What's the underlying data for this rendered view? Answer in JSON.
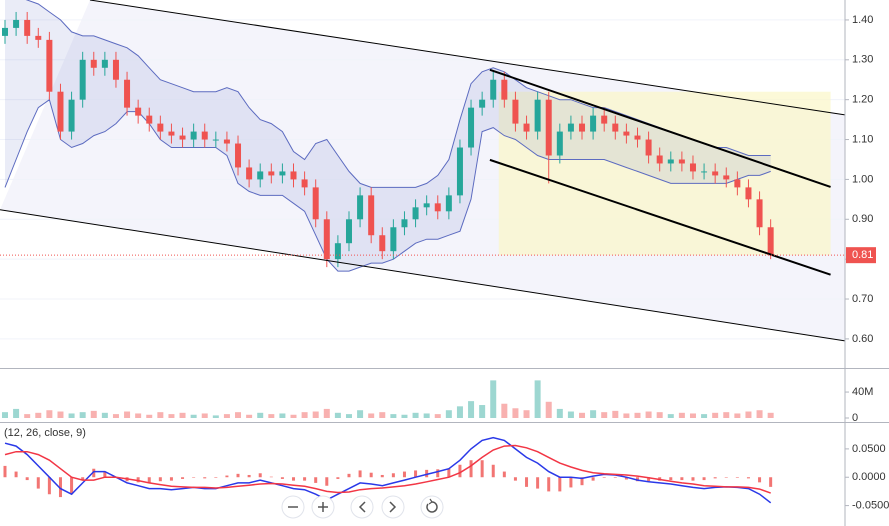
{
  "chart_data": [
    {
      "type": "candlestick",
      "open": [
        1.36,
        1.38,
        1.4,
        1.36,
        1.35,
        1.22,
        1.12,
        1.2,
        1.3,
        1.28,
        1.3,
        1.25,
        1.18,
        1.16,
        1.14,
        1.12,
        1.11,
        1.1,
        1.12,
        1.1,
        1.1,
        1.09,
        1.03,
        1.0,
        1.02,
        1.01,
        1.02,
        1.0,
        0.98,
        0.9,
        0.8,
        0.84,
        0.9,
        0.96,
        0.86,
        0.82,
        0.88,
        0.9,
        0.93,
        0.94,
        0.92,
        0.96,
        1.08,
        1.18,
        1.2,
        1.25,
        1.2,
        1.14,
        1.12,
        1.2,
        1.06,
        1.12,
        1.14,
        1.12,
        1.16,
        1.14,
        1.12,
        1.11,
        1.1,
        1.06,
        1.04,
        1.05,
        1.04,
        1.02,
        1.02,
        1.01,
        1.0,
        0.98,
        0.95,
        0.88
      ],
      "high": [
        1.4,
        1.42,
        1.42,
        1.38,
        1.37,
        1.24,
        1.22,
        1.32,
        1.32,
        1.32,
        1.32,
        1.27,
        1.2,
        1.18,
        1.16,
        1.14,
        1.13,
        1.14,
        1.14,
        1.12,
        1.12,
        1.11,
        1.05,
        1.04,
        1.04,
        1.04,
        1.04,
        1.02,
        1.0,
        0.92,
        0.86,
        0.92,
        0.98,
        0.98,
        0.88,
        0.9,
        0.92,
        0.95,
        0.96,
        0.96,
        0.98,
        1.1,
        1.2,
        1.22,
        1.27,
        1.27,
        1.22,
        1.16,
        1.22,
        1.22,
        1.14,
        1.16,
        1.16,
        1.18,
        1.18,
        1.16,
        1.14,
        1.13,
        1.12,
        1.08,
        1.07,
        1.07,
        1.06,
        1.04,
        1.04,
        1.03,
        1.02,
        1.0,
        0.97,
        0.9
      ],
      "low": [
        1.34,
        1.36,
        1.34,
        1.33,
        1.2,
        1.1,
        1.1,
        1.18,
        1.26,
        1.26,
        1.23,
        1.16,
        1.14,
        1.12,
        1.1,
        1.09,
        1.08,
        1.08,
        1.08,
        1.08,
        1.07,
        1.01,
        0.98,
        0.98,
        0.99,
        0.99,
        0.98,
        0.96,
        0.88,
        0.78,
        0.78,
        0.82,
        0.88,
        0.84,
        0.8,
        0.8,
        0.86,
        0.88,
        0.91,
        0.9,
        0.9,
        0.94,
        1.06,
        1.16,
        1.18,
        1.18,
        1.12,
        1.1,
        1.1,
        0.99,
        1.04,
        1.1,
        1.1,
        1.1,
        1.12,
        1.1,
        1.09,
        1.08,
        1.04,
        1.02,
        1.02,
        1.02,
        1.0,
        1.0,
        0.99,
        0.98,
        0.96,
        0.93,
        0.86,
        0.8
      ],
      "close": [
        1.38,
        1.4,
        1.36,
        1.35,
        1.22,
        1.12,
        1.2,
        1.3,
        1.28,
        1.3,
        1.25,
        1.18,
        1.16,
        1.14,
        1.12,
        1.11,
        1.1,
        1.12,
        1.1,
        1.1,
        1.09,
        1.03,
        1.0,
        1.02,
        1.01,
        1.02,
        1.0,
        0.98,
        0.9,
        0.8,
        0.84,
        0.9,
        0.96,
        0.86,
        0.82,
        0.88,
        0.9,
        0.93,
        0.94,
        0.92,
        0.96,
        1.08,
        1.18,
        1.2,
        1.25,
        1.2,
        1.14,
        1.12,
        1.2,
        1.06,
        1.12,
        1.14,
        1.12,
        1.16,
        1.14,
        1.12,
        1.11,
        1.1,
        1.06,
        1.04,
        1.05,
        1.04,
        1.02,
        1.02,
        1.01,
        1.0,
        0.98,
        0.95,
        0.88,
        0.81
      ],
      "up_color": "#26a69a",
      "down_color": "#ef5350",
      "bands": {
        "color": "#5c6bc0",
        "upper": [
          1.46,
          1.46,
          1.45,
          1.44,
          1.42,
          1.4,
          1.37,
          1.36,
          1.36,
          1.35,
          1.34,
          1.33,
          1.31,
          1.28,
          1.25,
          1.24,
          1.23,
          1.22,
          1.22,
          1.22,
          1.23,
          1.22,
          1.18,
          1.15,
          1.14,
          1.12,
          1.07,
          1.05,
          1.09,
          1.1,
          1.06,
          1.02,
          0.99,
          0.98,
          0.98,
          0.98,
          0.98,
          0.98,
          0.99,
          1.01,
          1.05,
          1.15,
          1.24,
          1.27,
          1.28,
          1.27,
          1.25,
          1.23,
          1.22,
          1.21,
          1.2,
          1.2,
          1.19,
          1.18,
          1.18,
          1.17,
          1.16,
          1.15,
          1.14,
          1.13,
          1.12,
          1.11,
          1.1,
          1.09,
          1.08,
          1.08,
          1.07,
          1.06,
          1.06,
          1.06
        ],
        "lower": [
          0.98,
          1.05,
          1.12,
          1.18,
          1.2,
          1.1,
          1.08,
          1.09,
          1.11,
          1.12,
          1.14,
          1.17,
          1.17,
          1.14,
          1.1,
          1.08,
          1.08,
          1.08,
          1.08,
          1.08,
          1.06,
          0.99,
          0.97,
          0.96,
          0.96,
          0.96,
          0.94,
          0.92,
          0.86,
          0.8,
          0.77,
          0.77,
          0.78,
          0.79,
          0.79,
          0.8,
          0.82,
          0.84,
          0.85,
          0.85,
          0.86,
          0.87,
          0.95,
          1.12,
          1.13,
          1.11,
          1.1,
          1.08,
          1.06,
          1.05,
          1.05,
          1.05,
          1.05,
          1.05,
          1.05,
          1.04,
          1.03,
          1.02,
          1.01,
          1.0,
          0.99,
          0.99,
          0.99,
          0.99,
          0.99,
          0.99,
          1.0,
          1.01,
          1.01,
          1.02
        ]
      },
      "xlim": [
        -0.45,
        75.7
      ],
      "ylim": [
        0.527,
        1.45
      ],
      "yticks": [
        {
          "value": 0.6,
          "label": "0.60"
        },
        {
          "value": 0.7,
          "label": "0.70"
        },
        {
          "value": 0.8,
          "label": "0.80"
        },
        {
          "value": 0.9,
          "label": "0.90"
        },
        {
          "value": 1.0,
          "label": "1.00"
        },
        {
          "value": 1.1,
          "label": "1.10"
        },
        {
          "value": 1.2,
          "label": "1.20"
        },
        {
          "value": 1.3,
          "label": "1.30"
        },
        {
          "value": 1.4,
          "label": "1.40"
        }
      ],
      "trend_lines": [
        {
          "x": [
            7.66,
            75.7
          ],
          "y": [
            1.45,
            1.162
          ],
          "width": 1
        },
        {
          "x": [
            -0.45,
            75.7
          ],
          "y": [
            0.924,
            0.595
          ],
          "width": 1
        },
        {
          "x": [
            43.7,
            74.4
          ],
          "y": [
            1.275,
            0.981
          ],
          "width": 2
        },
        {
          "x": [
            43.7,
            74.4
          ],
          "y": [
            1.049,
            0.761
          ],
          "width": 2
        }
      ],
      "rectangle": {
        "x": [
          44.5,
          74.4
        ],
        "y": [
          1.22,
          0.81
        ],
        "color": "#fbf6c8"
      },
      "last_price": {
        "value": 0.81,
        "label": "0.81",
        "color": "#ef5350"
      },
      "grid": true
    },
    {
      "type": "volume",
      "values": [
        9000000,
        14000000,
        6000000,
        8000000,
        12000000,
        10000000,
        7000000,
        9000000,
        11000000,
        8000000,
        6000000,
        10000000,
        7000000,
        5000000,
        9000000,
        6000000,
        8000000,
        5000000,
        7000000,
        4000000,
        6000000,
        9000000,
        5000000,
        8000000,
        6000000,
        7000000,
        5000000,
        9000000,
        10000000,
        14000000,
        8000000,
        6000000,
        12000000,
        7000000,
        9000000,
        6000000,
        5000000,
        8000000,
        7000000,
        6000000,
        12000000,
        18000000,
        26000000,
        20000000,
        58000000,
        22000000,
        15000000,
        12000000,
        58000000,
        25000000,
        14000000,
        10000000,
        8000000,
        12000000,
        9000000,
        11000000,
        7000000,
        8000000,
        10000000,
        9000000,
        6000000,
        8000000,
        7000000,
        6000000,
        8000000,
        9000000,
        7000000,
        10000000,
        12000000,
        8000000
      ],
      "ylim": [
        0,
        74000000
      ],
      "yticks": [
        0,
        {
          "value": 40000000,
          "label": "40M"
        }
      ]
    },
    {
      "type": "macd",
      "legend": "(12, 26, close, 9)",
      "series": [
        {
          "color": "#2a39e8",
          "values": [
            0.06,
            0.055,
            0.04,
            0.02,
            0.0,
            -0.02,
            -0.03,
            -0.01,
            0.01,
            0.01,
            0.0,
            -0.01,
            -0.015,
            -0.02,
            -0.02,
            -0.022,
            -0.02,
            -0.018,
            -0.02,
            -0.02,
            -0.015,
            -0.01,
            -0.01,
            -0.005,
            -0.01,
            -0.015,
            -0.02,
            -0.022,
            -0.03,
            -0.04,
            -0.03,
            -0.02,
            -0.01,
            -0.012,
            -0.015,
            -0.01,
            -0.005,
            0.0,
            0.005,
            0.01,
            0.015,
            0.03,
            0.05,
            0.065,
            0.07,
            0.065,
            0.05,
            0.035,
            0.025,
            0.01,
            0.0,
            0.0,
            -0.002,
            0.002,
            0.005,
            0.004,
            0.0,
            -0.005,
            -0.008,
            -0.01,
            -0.012,
            -0.015,
            -0.018,
            -0.02,
            -0.018,
            -0.017,
            -0.018,
            -0.02,
            -0.03,
            -0.045
          ]
        },
        {
          "color": "#f23645",
          "values": [
            0.04,
            0.045,
            0.045,
            0.04,
            0.03,
            0.015,
            0.0,
            -0.005,
            -0.005,
            0.0,
            0.0,
            -0.003,
            -0.006,
            -0.01,
            -0.013,
            -0.016,
            -0.017,
            -0.018,
            -0.018,
            -0.019,
            -0.018,
            -0.016,
            -0.014,
            -0.012,
            -0.011,
            -0.012,
            -0.014,
            -0.016,
            -0.02,
            -0.025,
            -0.027,
            -0.026,
            -0.022,
            -0.02,
            -0.019,
            -0.017,
            -0.015,
            -0.012,
            -0.008,
            -0.004,
            0.0,
            0.008,
            0.02,
            0.035,
            0.048,
            0.055,
            0.056,
            0.052,
            0.045,
            0.035,
            0.025,
            0.018,
            0.012,
            0.008,
            0.006,
            0.005,
            0.004,
            0.002,
            -0.001,
            -0.004,
            -0.007,
            -0.01,
            -0.012,
            -0.015,
            -0.016,
            -0.017,
            -0.017,
            -0.018,
            -0.021,
            -0.028
          ]
        }
      ],
      "histogram": {
        "color": "#ef5350",
        "values": [
          0.02,
          0.01,
          -0.005,
          -0.02,
          -0.03,
          -0.035,
          -0.03,
          -0.005,
          0.015,
          0.01,
          0.0,
          -0.007,
          -0.009,
          -0.01,
          -0.007,
          -0.006,
          -0.003,
          0.0,
          -0.002,
          -0.001,
          0.003,
          0.006,
          0.004,
          0.007,
          0.001,
          -0.003,
          -0.006,
          -0.006,
          -0.01,
          -0.015,
          -0.003,
          0.006,
          0.012,
          0.008,
          0.004,
          0.007,
          0.01,
          0.012,
          0.013,
          0.014,
          0.015,
          0.022,
          0.03,
          0.03,
          0.022,
          0.01,
          -0.006,
          -0.017,
          -0.02,
          -0.025,
          -0.025,
          -0.018,
          -0.014,
          -0.006,
          -0.001,
          -0.001,
          -0.004,
          -0.007,
          -0.007,
          -0.006,
          -0.005,
          -0.005,
          -0.006,
          -0.005,
          -0.002,
          0.0,
          -0.001,
          -0.002,
          -0.009,
          -0.017
        ]
      },
      "ylim": [
        -0.086,
        0.0939
      ],
      "yticks": [
        {
          "value": -0.05,
          "label": "-0.0500"
        },
        {
          "value": 0,
          "label": "0.0000"
        },
        {
          "value": 0.05,
          "label": "0.0500"
        }
      ]
    }
  ]
}
